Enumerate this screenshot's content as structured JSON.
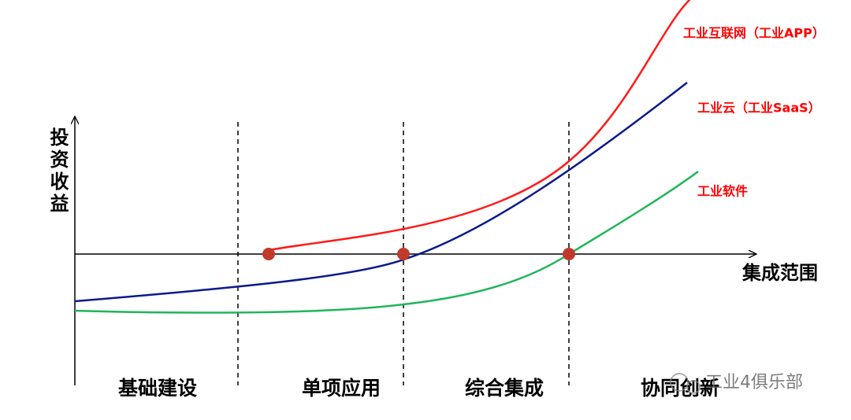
{
  "axes": {
    "y_label": "投资收益",
    "x_label": "集成范围"
  },
  "curves": [
    {
      "label": "工业互联网（工业APP）"
    },
    {
      "label": "工业云（工业SaaS）"
    },
    {
      "label": "工业软件"
    }
  ],
  "stages": [
    "基础建设",
    "单项应用",
    "综合集成",
    "协同创新"
  ],
  "watermark": "工业4俱乐部"
}
